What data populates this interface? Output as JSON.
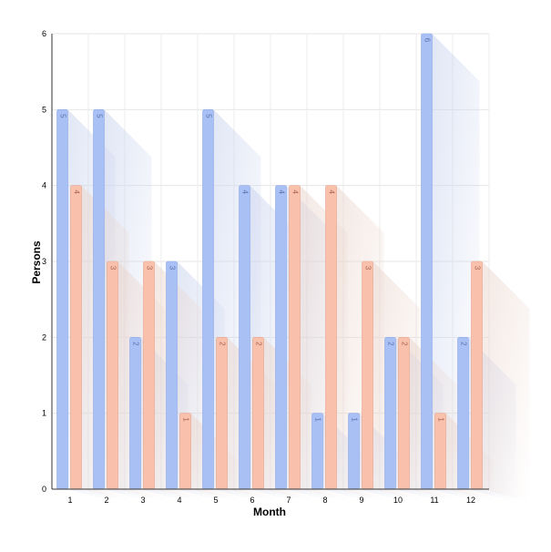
{
  "chart_data": {
    "type": "bar",
    "title": "",
    "xlabel": "Month",
    "ylabel": "Persons",
    "categories": [
      "1",
      "2",
      "3",
      "4",
      "5",
      "6",
      "7",
      "8",
      "9",
      "10",
      "11",
      "12"
    ],
    "ylim": [
      0,
      6
    ],
    "yticks": [
      "0",
      "1",
      "2",
      "3",
      "4",
      "5",
      "6"
    ],
    "grid": true,
    "legend": "none",
    "series": [
      {
        "values": [
          5,
          5,
          2,
          3,
          5,
          4,
          4,
          1,
          1,
          2,
          6,
          2
        ],
        "color": "#a9c0f5",
        "stroke": "#8fa9e8",
        "label_color": "#5a6fa8"
      },
      {
        "values": [
          4,
          3,
          3,
          1,
          2,
          2,
          4,
          4,
          3,
          2,
          1,
          3
        ],
        "color": "#f9c1ac",
        "stroke": "#e8a58c",
        "label_color": "#a8614a"
      }
    ],
    "data_labels": {
      "series_0": [
        "5",
        "5",
        "2",
        "3",
        "5",
        "4",
        "4",
        "1",
        "1",
        "2",
        "6",
        "2"
      ],
      "series_1": [
        "4",
        "3",
        "3",
        "1",
        "2",
        "2",
        "4",
        "4",
        "3",
        "2",
        "1",
        "3"
      ]
    }
  }
}
